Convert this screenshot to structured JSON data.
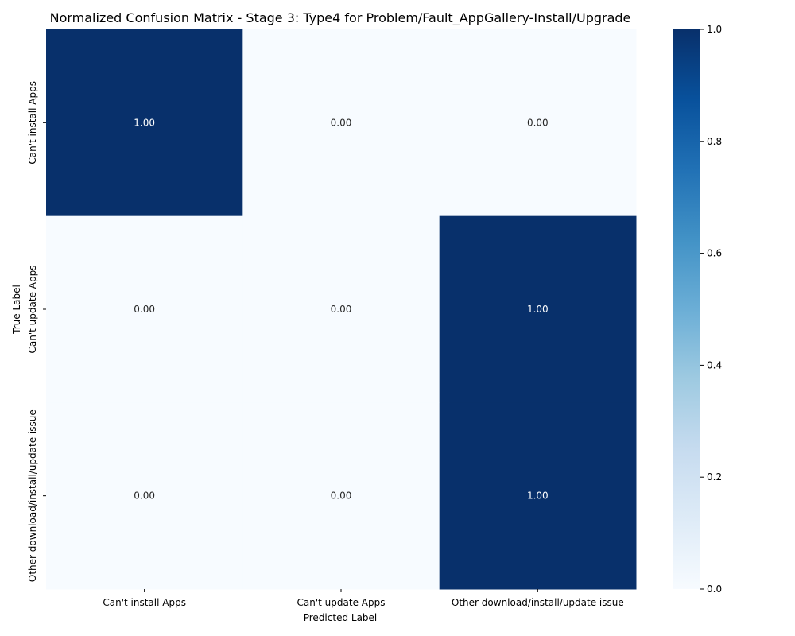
{
  "chart_data": {
    "type": "heatmap",
    "title": "Normalized Confusion Matrix - Stage 3: Type4 for Problem/Fault_AppGallery-Install/Upgrade",
    "xlabel": "Predicted Label",
    "ylabel": "True Label",
    "x_categories": [
      "Can't install Apps",
      "Can't update Apps",
      "Other download/install/update issue"
    ],
    "y_categories": [
      "Can't install Apps",
      "Can't update Apps",
      "Other download/install/update issue"
    ],
    "values": [
      [
        1.0,
        0.0,
        0.0
      ],
      [
        0.0,
        0.0,
        1.0
      ],
      [
        0.0,
        0.0,
        1.0
      ]
    ],
    "cell_labels": [
      [
        "1.00",
        "0.00",
        "0.00"
      ],
      [
        "0.00",
        "0.00",
        "1.00"
      ],
      [
        "0.00",
        "0.00",
        "1.00"
      ]
    ],
    "colormap": "Blues",
    "colorbar": {
      "range": [
        0.0,
        1.0
      ],
      "ticks": [
        "0.0",
        "0.2",
        "0.4",
        "0.6",
        "0.8",
        "1.0"
      ]
    },
    "colors": {
      "low": "#f7fbff",
      "high": "#08306b",
      "text_on_dark": "#ffffff",
      "text_on_light": "#262626"
    }
  }
}
